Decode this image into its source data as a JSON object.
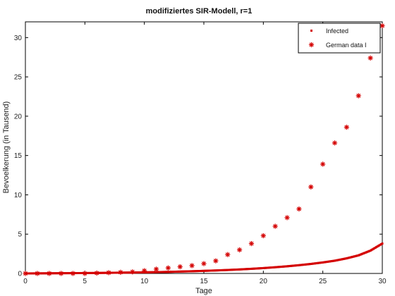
{
  "chart_data": {
    "type": "scatter",
    "title": "modifiziertes SIR-Modell, r=1",
    "xlabel": "Tage",
    "ylabel": "Bevoelkerung (in Tausend)",
    "xlim": [
      0,
      30
    ],
    "ylim": [
      0,
      32
    ],
    "xticks": [
      0,
      5,
      10,
      15,
      20,
      25,
      30
    ],
    "yticks": [
      0,
      5,
      10,
      15,
      20,
      25,
      30
    ],
    "grid": false,
    "legend_position": "top-right",
    "series": [
      {
        "name": "Infected",
        "marker": "dot",
        "color": "#d40000",
        "x": [
          0,
          1,
          2,
          3,
          4,
          5,
          6,
          7,
          8,
          9,
          10,
          11,
          12,
          13,
          14,
          15,
          16,
          17,
          18,
          19,
          20,
          21,
          22,
          23,
          24,
          25,
          26,
          27,
          28,
          29,
          30
        ],
        "y": [
          0.0,
          0.01,
          0.02,
          0.03,
          0.04,
          0.05,
          0.06,
          0.08,
          0.1,
          0.12,
          0.14,
          0.17,
          0.2,
          0.24,
          0.28,
          0.33,
          0.38,
          0.44,
          0.51,
          0.59,
          0.68,
          0.79,
          0.91,
          1.05,
          1.21,
          1.4,
          1.62,
          1.92,
          2.3,
          2.9,
          3.8
        ]
      },
      {
        "name": "German data I",
        "marker": "asterisk",
        "color": "#d40000",
        "x": [
          0,
          1,
          2,
          3,
          4,
          5,
          6,
          7,
          8,
          9,
          10,
          11,
          12,
          13,
          14,
          15,
          16,
          17,
          18,
          19,
          20,
          21,
          22,
          23,
          24,
          25,
          26,
          27,
          28,
          29,
          30
        ],
        "y": [
          0.0,
          0.0,
          0.0,
          0.0,
          0.0,
          0.0,
          0.05,
          0.1,
          0.15,
          0.2,
          0.35,
          0.55,
          0.7,
          0.85,
          1.0,
          1.25,
          1.6,
          2.4,
          3.0,
          3.8,
          4.8,
          6.0,
          7.1,
          8.2,
          11.0,
          13.9,
          16.6,
          18.6,
          22.6,
          27.4,
          31.5
        ]
      }
    ]
  }
}
